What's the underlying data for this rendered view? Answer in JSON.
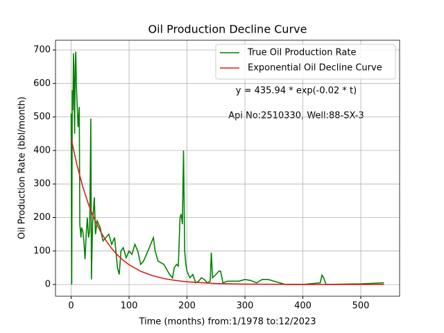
{
  "chart_data": {
    "type": "line",
    "title": "Oil Production Decline Curve",
    "xlabel": "Time (months) from:1/1978 to:12/2023",
    "ylabel": "Oil Production Rate (bbl/month)",
    "annotations": [
      "y = 435.94 * exp(-0.02 * t)",
      "Api No:2510330, Well:88-SX-3"
    ],
    "xlim": [
      -27,
      567
    ],
    "ylim": [
      -35,
      729
    ],
    "xticks": [
      0,
      100,
      200,
      300,
      400,
      500
    ],
    "yticks": [
      0,
      100,
      200,
      300,
      400,
      500,
      600,
      700
    ],
    "grid": true,
    "legend": "upper right",
    "series": [
      {
        "name": "True Oil Production Rate",
        "color": "#008000",
        "x": [
          0,
          1,
          2,
          3,
          4,
          5,
          6,
          7,
          8,
          9,
          10,
          12,
          14,
          15,
          17,
          18,
          20,
          22,
          24,
          26,
          28,
          30,
          32,
          34,
          35,
          37,
          40,
          42,
          45,
          50,
          55,
          60,
          65,
          70,
          75,
          80,
          83,
          86,
          90,
          95,
          100,
          105,
          110,
          115,
          120,
          125,
          130,
          135,
          142,
          145,
          150,
          160,
          165,
          170,
          175,
          178,
          182,
          185,
          188,
          190,
          192,
          194,
          196,
          198,
          200,
          205,
          210,
          215,
          220,
          225,
          230,
          235,
          240,
          242,
          244,
          250,
          255,
          258,
          262,
          270,
          280,
          290,
          300,
          310,
          320,
          330,
          340,
          350,
          360,
          370,
          400,
          430,
          433,
          436,
          440,
          500,
          540
        ],
        "values": [
          510,
          0,
          580,
          520,
          690,
          600,
          450,
          650,
          695,
          600,
          550,
          470,
          530,
          180,
          140,
          170,
          160,
          130,
          75,
          150,
          200,
          140,
          160,
          495,
          15,
          180,
          260,
          150,
          190,
          170,
          130,
          140,
          150,
          120,
          140,
          50,
          30,
          100,
          110,
          80,
          100,
          90,
          120,
          100,
          60,
          70,
          90,
          110,
          140,
          100,
          70,
          60,
          45,
          30,
          20,
          50,
          60,
          55,
          200,
          210,
          180,
          400,
          100,
          60,
          40,
          20,
          30,
          5,
          10,
          20,
          15,
          5,
          10,
          95,
          20,
          30,
          40,
          40,
          5,
          10,
          10,
          10,
          15,
          12,
          5,
          15,
          15,
          10,
          5,
          0,
          0,
          5,
          28,
          20,
          0,
          2,
          5
        ]
      },
      {
        "name": "Exponential Oil Decline Curve",
        "color": "#e01b1b",
        "x": [
          0,
          10,
          20,
          30,
          40,
          50,
          60,
          70,
          80,
          90,
          100,
          120,
          140,
          160,
          180,
          200,
          250,
          300,
          400,
          540
        ],
        "values": [
          435.94,
          356.9,
          292.2,
          239.2,
          195.9,
          160.4,
          131.3,
          107.5,
          88.0,
          72.1,
          59.0,
          39.5,
          26.5,
          17.8,
          11.9,
          8.0,
          2.9,
          1.1,
          0.1,
          0.0
        ]
      }
    ]
  }
}
